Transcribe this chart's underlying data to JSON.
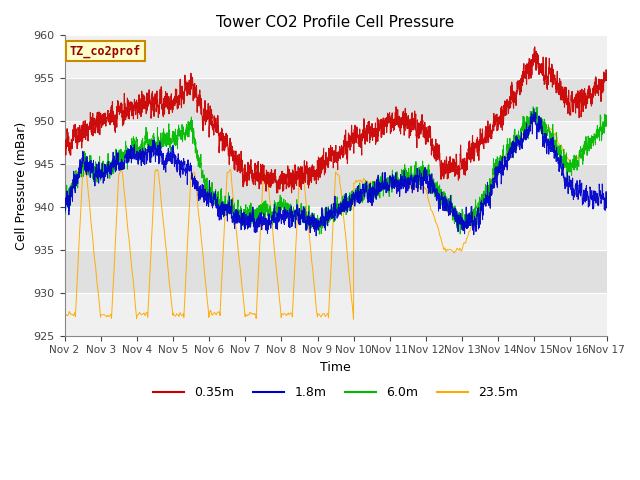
{
  "title": "Tower CO2 Profile Cell Pressure",
  "ylabel": "Cell Pressure (mBar)",
  "xlabel": "Time",
  "ylim": [
    925,
    960
  ],
  "series_labels": [
    "0.35m",
    "1.8m",
    "6.0m",
    "23.5m"
  ],
  "series_colors": [
    "#cc0000",
    "#0000cc",
    "#00bb00",
    "#ffaa00"
  ],
  "legend_box_label": "TZ_co2prof",
  "x_tick_labels": [
    "Nov 2",
    "Nov 3",
    "Nov 4",
    "Nov 5",
    "Nov 6",
    "Nov 7",
    "Nov 8",
    "Nov 9",
    "Nov 10",
    "Nov 11",
    "Nov 12",
    "Nov 13",
    "Nov 14",
    "Nov 15",
    "Nov 16",
    "Nov 17"
  ],
  "n_points": 3000,
  "background_color": "#ffffff",
  "plot_bg_light": "#f0f0f0",
  "plot_bg_dark": "#e0e0e0",
  "figsize": [
    6.4,
    4.8
  ],
  "dpi": 100
}
